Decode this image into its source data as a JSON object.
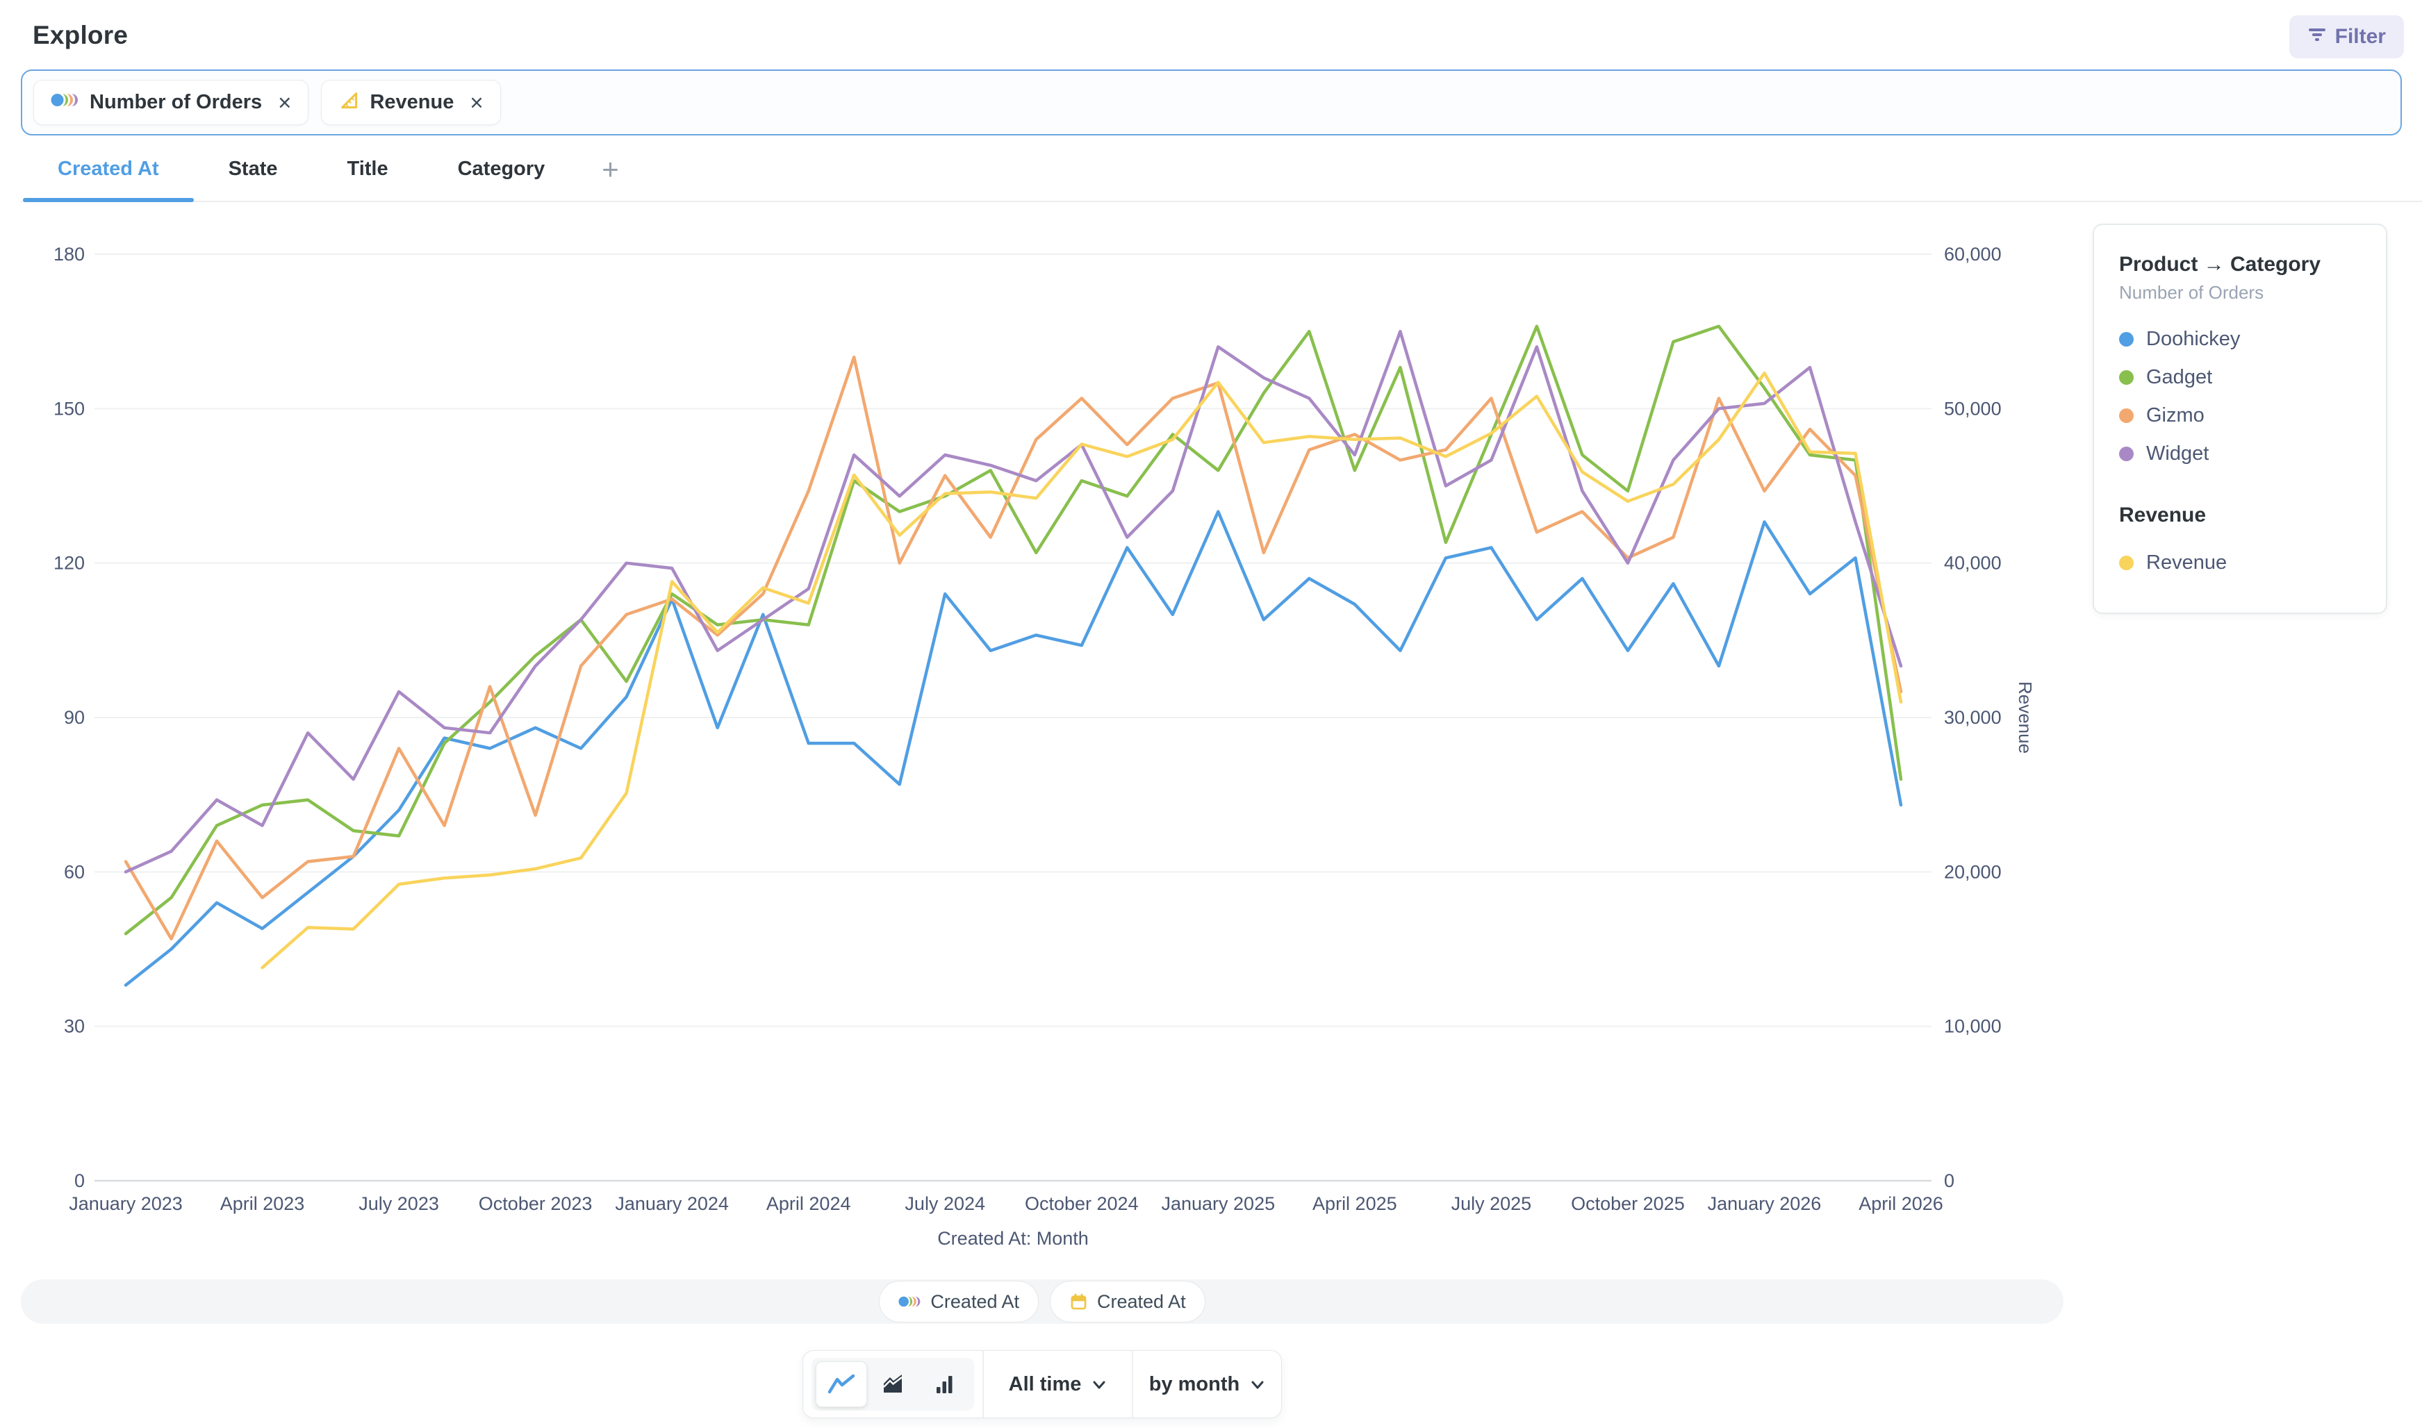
{
  "app": {
    "title": "Explore"
  },
  "header": {
    "filter_button": {
      "label": "Filter",
      "icon": "filter-icon",
      "color": "#7172AD",
      "background": "#EDEDF9"
    }
  },
  "metric_bar": {
    "pills": [
      {
        "label": "Number of Orders",
        "icon": "category-circles-icon",
        "close": "×"
      },
      {
        "label": "Revenue",
        "icon": "metric-triangle-icon",
        "close": "×"
      }
    ]
  },
  "tabs": {
    "items": [
      {
        "label": "Created At",
        "active": true
      },
      {
        "label": "State",
        "active": false
      },
      {
        "label": "Title",
        "active": false
      },
      {
        "label": "Category",
        "active": false
      }
    ],
    "add_label": "+"
  },
  "chart_data": {
    "type": "line",
    "title": "",
    "x": [
      "January 2023",
      "February 2023",
      "March 2023",
      "April 2023",
      "May 2023",
      "June 2023",
      "July 2023",
      "August 2023",
      "September 2023",
      "October 2023",
      "November 2023",
      "December 2023",
      "January 2024",
      "February 2024",
      "March 2024",
      "April 2024",
      "May 2024",
      "June 2024",
      "July 2024",
      "August 2024",
      "September 2024",
      "October 2024",
      "November 2024",
      "December 2024",
      "January 2025",
      "February 2025",
      "March 2025",
      "April 2025",
      "May 2025",
      "June 2025",
      "July 2025",
      "August 2025",
      "September 2025",
      "October 2025",
      "November 2025",
      "December 2025",
      "January 2026",
      "February 2026",
      "March 2026",
      "April 2026"
    ],
    "x_tick_step": 3,
    "xlabel": "Created At: Month",
    "left_axis": {
      "ticks": [
        0,
        30,
        60,
        90,
        120,
        150,
        180
      ],
      "max": 180
    },
    "right_axis": {
      "label": "Revenue",
      "ticks": [
        0,
        10000,
        20000,
        30000,
        40000,
        50000,
        60000
      ],
      "max": 60000
    },
    "grid": true,
    "legend_position": "right",
    "series": [
      {
        "name": "Doohickey",
        "axis": "left",
        "color": "#509EE3",
        "values": [
          38,
          45,
          54,
          49,
          56,
          63,
          72,
          86,
          84,
          88,
          84,
          94,
          113,
          88,
          110,
          85,
          85,
          77,
          114,
          103,
          106,
          104,
          123,
          110,
          130,
          109,
          117,
          112,
          103,
          121,
          123,
          109,
          117,
          103,
          116,
          100,
          128,
          114,
          121,
          73
        ]
      },
      {
        "name": "Gadget",
        "axis": "left",
        "color": "#88BF4D",
        "values": [
          48,
          55,
          69,
          73,
          74,
          68,
          67,
          85,
          93,
          102,
          109,
          97,
          114,
          108,
          109,
          108,
          136,
          130,
          133,
          138,
          122,
          136,
          133,
          145,
          138,
          153,
          165,
          138,
          158,
          124,
          145,
          166,
          141,
          134,
          163,
          166,
          154,
          141,
          140,
          78
        ]
      },
      {
        "name": "Gizmo",
        "axis": "left",
        "color": "#F2A86F",
        "values": [
          62,
          47,
          66,
          55,
          62,
          63,
          84,
          69,
          96,
          71,
          100,
          110,
          113,
          106,
          114,
          134,
          160,
          120,
          137,
          125,
          144,
          152,
          143,
          152,
          155,
          122,
          142,
          145,
          140,
          142,
          152,
          126,
          130,
          121,
          125,
          152,
          134,
          146,
          137,
          95
        ]
      },
      {
        "name": "Widget",
        "axis": "left",
        "color": "#A989C5",
        "values": [
          60,
          64,
          74,
          69,
          87,
          78,
          95,
          88,
          87,
          100,
          109,
          120,
          119,
          103,
          109,
          115,
          141,
          133,
          141,
          139,
          136,
          143,
          125,
          134,
          162,
          156,
          152,
          141,
          165,
          135,
          140,
          162,
          134,
          120,
          140,
          150,
          151,
          158,
          128,
          100
        ]
      },
      {
        "name": "Revenue",
        "axis": "right",
        "color": "#F9D45C",
        "values": [
          null,
          null,
          null,
          13800,
          16400,
          16300,
          19200,
          19600,
          19800,
          20200,
          20900,
          25100,
          38800,
          35500,
          38400,
          37400,
          45700,
          41800,
          44500,
          44600,
          44200,
          47700,
          46900,
          48000,
          51700,
          47800,
          48200,
          48000,
          48100,
          46900,
          48400,
          50800,
          45900,
          44000,
          45100,
          48000,
          52300,
          47200,
          47100,
          31000
        ]
      }
    ]
  },
  "legend": {
    "group_title": "Product → Category",
    "group_subtitle": "Number of Orders",
    "items": [
      {
        "label": "Doohickey",
        "color": "#509EE3"
      },
      {
        "label": "Gadget",
        "color": "#88BF4D"
      },
      {
        "label": "Gizmo",
        "color": "#F2A86F"
      },
      {
        "label": "Widget",
        "color": "#A989C5"
      }
    ],
    "revenue_title": "Revenue",
    "revenue_items": [
      {
        "label": "Revenue",
        "color": "#F9D45C"
      }
    ]
  },
  "breakout_bar": {
    "pills": [
      {
        "label": "Created At",
        "icon": "category-circles-icon"
      },
      {
        "label": "Created At",
        "icon": "calendar-icon"
      }
    ]
  },
  "controls": {
    "chart_types": [
      {
        "name": "line",
        "icon": "line-chart-icon",
        "selected": true
      },
      {
        "name": "area",
        "icon": "area-chart-icon",
        "selected": false
      },
      {
        "name": "bar",
        "icon": "bar-chart-icon",
        "selected": false
      }
    ],
    "time_range_label": "All time",
    "granularity_label": "by month"
  },
  "colors": {
    "accent": "#509EE3",
    "filter_purple": "#7172AD",
    "text_dark": "#2E353B",
    "text_medium": "#4C5773",
    "text_light": "#9AA4B2",
    "gridline": "#EFF0F2",
    "axis_line": "#D9DCDE",
    "icon_yellow": "#EFC543"
  }
}
